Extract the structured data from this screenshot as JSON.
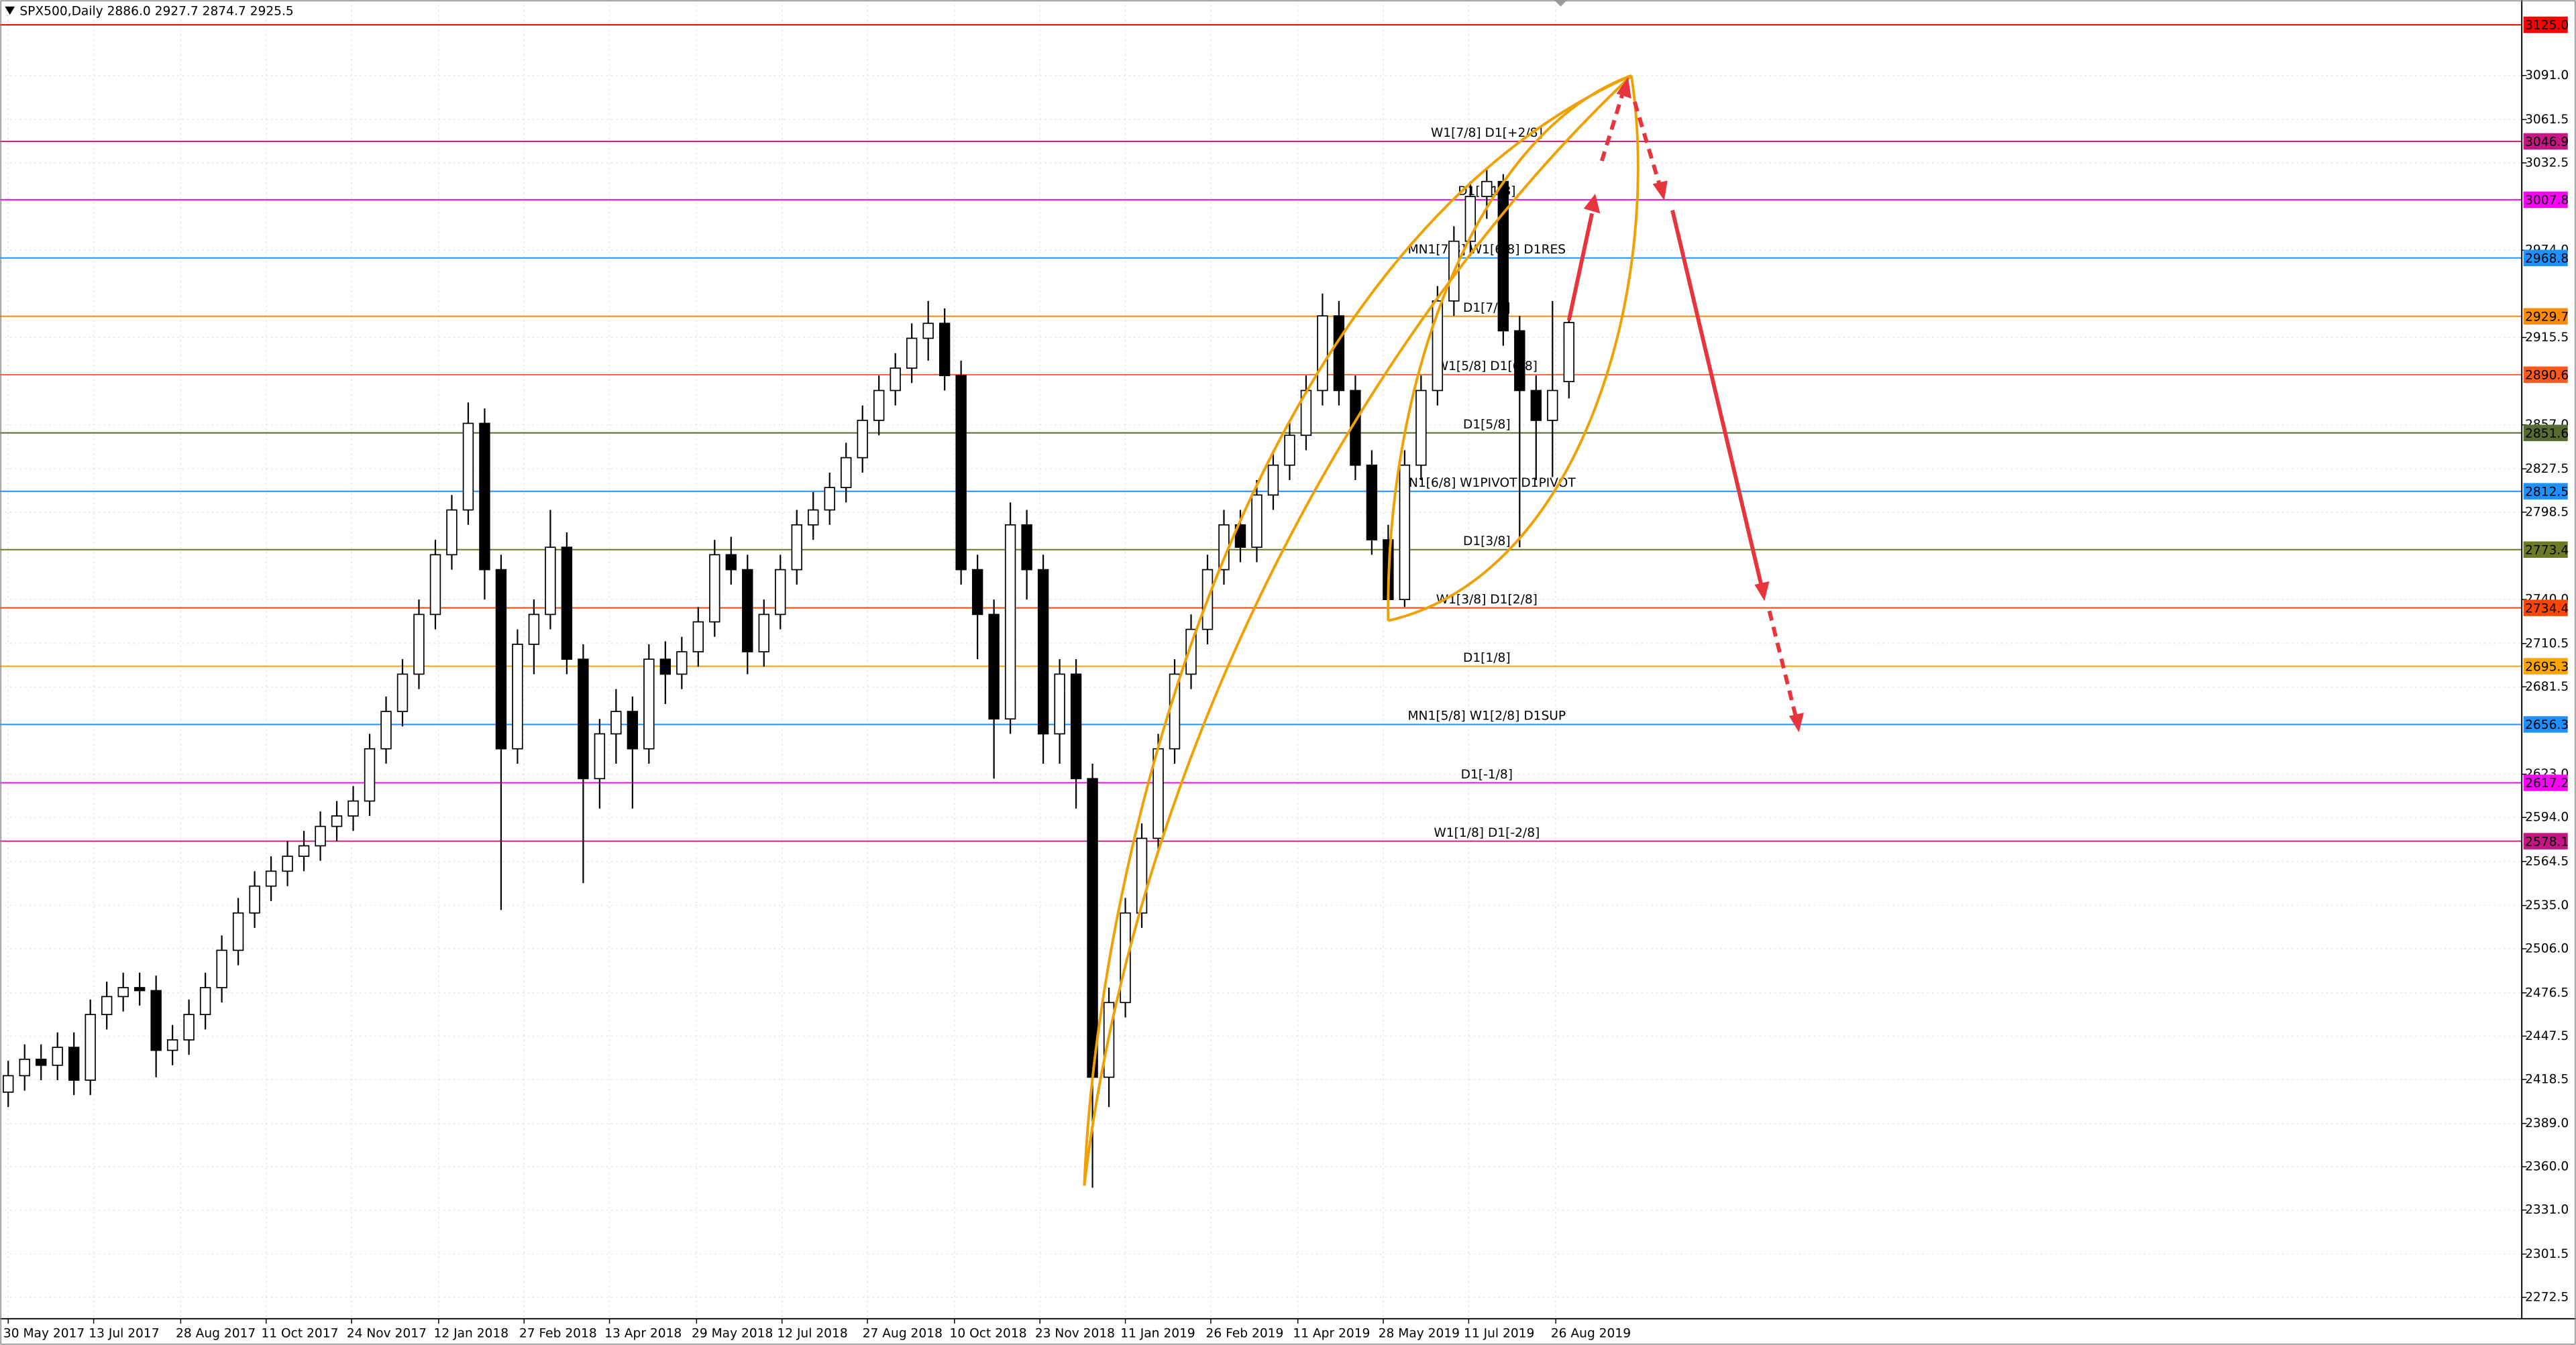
{
  "chart_data": {
    "type": "candlestick",
    "title": "SPX500,Daily  2886.0 2927.7 2874.7 2925.5",
    "up_color": "#ffffff",
    "down_color": "#000000",
    "wick_color": "#000000",
    "grid": true,
    "xlim": [
      -0.5,
      153
    ],
    "ylim": [
      2258.2,
      3141.6
    ],
    "xticks": [
      {
        "value": 0,
        "label": "30 May 2017"
      },
      {
        "value": 5.2,
        "label": "13 Jul 2017"
      },
      {
        "value": 10.5,
        "label": "28 Aug 2017"
      },
      {
        "value": 15.7,
        "label": "11 Oct 2017"
      },
      {
        "value": 20.9,
        "label": "24 Nov 2017"
      },
      {
        "value": 26.2,
        "label": "12 Jan 2018"
      },
      {
        "value": 31.4,
        "label": "27 Feb 2018"
      },
      {
        "value": 36.6,
        "label": "13 Apr 2018"
      },
      {
        "value": 41.9,
        "label": "29 May 2018"
      },
      {
        "value": 47.1,
        "label": "12 Jul 2018"
      },
      {
        "value": 52.3,
        "label": "27 Aug 2018"
      },
      {
        "value": 57.6,
        "label": "10 Oct 2018"
      },
      {
        "value": 62.8,
        "label": "23 Nov 2018"
      },
      {
        "value": 68,
        "label": "11 Jan 2019"
      },
      {
        "value": 73.2,
        "label": "26 Feb 2019"
      },
      {
        "value": 78.5,
        "label": "11 Apr 2019"
      },
      {
        "value": 83.7,
        "label": "28 May 2019"
      },
      {
        "value": 88.9,
        "label": "11 Jul 2019"
      },
      {
        "value": 94.2,
        "label": "26 Aug 2019"
      }
    ],
    "yticks": [
      {
        "value": 3091.0,
        "label": "3091.0"
      },
      {
        "value": 3061.5,
        "label": "3061.5"
      },
      {
        "value": 3032.5,
        "label": "3032.5"
      },
      {
        "value": 2974.0,
        "label": "2974.0"
      },
      {
        "value": 2915.5,
        "label": "2915.5"
      },
      {
        "value": 2857.0,
        "label": "2857.0"
      },
      {
        "value": 2827.5,
        "label": "2827.5"
      },
      {
        "value": 2798.5,
        "label": "2798.5"
      },
      {
        "value": 2740.0,
        "label": "2740.0"
      },
      {
        "value": 2710.5,
        "label": "2710.5"
      },
      {
        "value": 2681.5,
        "label": "2681.5"
      },
      {
        "value": 2623.0,
        "label": "2623.0"
      },
      {
        "value": 2594.0,
        "label": "2594.0"
      },
      {
        "value": 2564.5,
        "label": "2564.5"
      },
      {
        "value": 2535.0,
        "label": "2535.0"
      },
      {
        "value": 2506.0,
        "label": "2506.0"
      },
      {
        "value": 2476.5,
        "label": "2476.5"
      },
      {
        "value": 2447.5,
        "label": "2447.5"
      },
      {
        "value": 2418.5,
        "label": "2418.5"
      },
      {
        "value": 2389.0,
        "label": "2389.0"
      },
      {
        "value": 2360.0,
        "label": "2360.0"
      },
      {
        "value": 2331.0,
        "label": "2331.0"
      },
      {
        "value": 2301.5,
        "label": "2301.5"
      },
      {
        "value": 2272.5,
        "label": "2272.5"
      }
    ],
    "levels": [
      {
        "value": 3125.0,
        "label": "3125.0",
        "color": "#ff0000"
      },
      {
        "value": 3046.9,
        "label": "3046.9",
        "text": "W1[7/8] D1[+2/8]",
        "color": "#c71585"
      },
      {
        "value": 3007.8,
        "label": "3007.8",
        "text": "D1[+1/8]",
        "color": "#ff00ff"
      },
      {
        "value": 2968.8,
        "label": "2968.8",
        "text": "MN1[7/8] W1[6/8] D1RES",
        "color": "#1e90ff"
      },
      {
        "value": 2929.7,
        "label": "2929.7",
        "text": "D1[7/8]",
        "color": "#ff8c00"
      },
      {
        "value": 2890.6,
        "label": "2890.6",
        "text": "W1[5/8] D1[6/8]",
        "color": "#ff5a1e"
      },
      {
        "value": 2851.6,
        "label": "2851.6",
        "text": "D1[5/8]",
        "color": "#556b2f"
      },
      {
        "value": 2812.5,
        "label": "2812.5",
        "text": "MN1[6/8] W1PIVOT D1PIVOT",
        "color": "#1e90ff"
      },
      {
        "value": 2773.4,
        "label": "2773.4",
        "text": "D1[3/8]",
        "color": "#6b7a23"
      },
      {
        "value": 2734.4,
        "label": "2734.4",
        "text": "W1[3/8] D1[2/8]",
        "color": "#ff4500"
      },
      {
        "value": 2695.3,
        "label": "2695.3",
        "text": "D1[1/8]",
        "color": "#ffa500"
      },
      {
        "value": 2656.3,
        "label": "2656.3",
        "text": "MN1[5/8] W1[2/8] D1SUP",
        "color": "#1e90ff"
      },
      {
        "value": 2617.2,
        "label": "2617.2",
        "text": "D1[-1/8]",
        "color": "#ff00ff"
      },
      {
        "value": 2578.1,
        "label": "2578.1",
        "text": "W1[1/8] D1[-2/8]",
        "color": "#c71585"
      }
    ],
    "x": [
      0,
      1,
      2,
      3,
      4,
      5,
      6,
      7,
      8,
      9,
      10,
      11,
      12,
      13,
      14,
      15,
      16,
      17,
      18,
      19,
      20,
      21,
      22,
      23,
      24,
      25,
      26,
      27,
      28,
      29,
      30,
      31,
      32,
      33,
      34,
      35,
      36,
      37,
      38,
      39,
      40,
      41,
      42,
      43,
      44,
      45,
      46,
      47,
      48,
      49,
      50,
      51,
      52,
      53,
      54,
      55,
      56,
      57,
      58,
      59,
      60,
      61,
      62,
      63,
      64,
      65,
      66,
      67,
      68,
      69,
      70,
      71,
      72,
      73,
      74,
      75,
      76,
      77,
      78,
      79,
      80,
      81,
      82,
      83,
      84,
      85,
      86,
      87,
      88,
      89,
      90,
      91,
      92,
      93,
      94,
      95
    ],
    "ohlc": [
      [
        2410,
        2431,
        2400,
        2421
      ],
      [
        2421,
        2442,
        2411,
        2432
      ],
      [
        2432,
        2442,
        2418,
        2428
      ],
      [
        2428,
        2450,
        2418,
        2440
      ],
      [
        2440,
        2450,
        2408,
        2418
      ],
      [
        2418,
        2472,
        2408,
        2462
      ],
      [
        2462,
        2484,
        2452,
        2474
      ],
      [
        2474,
        2490,
        2464,
        2480
      ],
      [
        2480,
        2490,
        2468,
        2478
      ],
      [
        2478,
        2488,
        2420,
        2438
      ],
      [
        2438,
        2455,
        2428,
        2445
      ],
      [
        2445,
        2472,
        2435,
        2462
      ],
      [
        2462,
        2490,
        2452,
        2480
      ],
      [
        2480,
        2515,
        2470,
        2505
      ],
      [
        2505,
        2540,
        2495,
        2530
      ],
      [
        2530,
        2558,
        2520,
        2548
      ],
      [
        2548,
        2568,
        2538,
        2558
      ],
      [
        2558,
        2578,
        2548,
        2568
      ],
      [
        2568,
        2585,
        2558,
        2575
      ],
      [
        2575,
        2598,
        2565,
        2588
      ],
      [
        2588,
        2605,
        2578,
        2595
      ],
      [
        2595,
        2615,
        2585,
        2605
      ],
      [
        2605,
        2650,
        2595,
        2640
      ],
      [
        2640,
        2675,
        2630,
        2665
      ],
      [
        2665,
        2700,
        2655,
        2690
      ],
      [
        2690,
        2740,
        2680,
        2730
      ],
      [
        2730,
        2780,
        2720,
        2770
      ],
      [
        2770,
        2810,
        2760,
        2800
      ],
      [
        2800,
        2872,
        2790,
        2858
      ],
      [
        2858,
        2868,
        2740,
        2760
      ],
      [
        2760,
        2770,
        2532,
        2640
      ],
      [
        2640,
        2720,
        2630,
        2710
      ],
      [
        2710,
        2740,
        2690,
        2730
      ],
      [
        2730,
        2800,
        2720,
        2775
      ],
      [
        2775,
        2785,
        2690,
        2700
      ],
      [
        2700,
        2710,
        2550,
        2620
      ],
      [
        2620,
        2660,
        2600,
        2650
      ],
      [
        2650,
        2680,
        2630,
        2665
      ],
      [
        2665,
        2675,
        2600,
        2640
      ],
      [
        2640,
        2710,
        2630,
        2700
      ],
      [
        2700,
        2712,
        2670,
        2690
      ],
      [
        2690,
        2715,
        2680,
        2705
      ],
      [
        2705,
        2735,
        2695,
        2725
      ],
      [
        2725,
        2780,
        2715,
        2770
      ],
      [
        2770,
        2782,
        2750,
        2760
      ],
      [
        2760,
        2770,
        2690,
        2705
      ],
      [
        2705,
        2740,
        2695,
        2730
      ],
      [
        2730,
        2770,
        2720,
        2760
      ],
      [
        2760,
        2800,
        2750,
        2790
      ],
      [
        2790,
        2812,
        2780,
        2800
      ],
      [
        2800,
        2825,
        2790,
        2815
      ],
      [
        2815,
        2845,
        2805,
        2835
      ],
      [
        2835,
        2870,
        2825,
        2860
      ],
      [
        2860,
        2890,
        2850,
        2880
      ],
      [
        2880,
        2905,
        2870,
        2895
      ],
      [
        2895,
        2925,
        2885,
        2915
      ],
      [
        2915,
        2940,
        2900,
        2925
      ],
      [
        2925,
        2935,
        2880,
        2890
      ],
      [
        2890,
        2900,
        2750,
        2760
      ],
      [
        2760,
        2770,
        2700,
        2730
      ],
      [
        2730,
        2740,
        2620,
        2660
      ],
      [
        2660,
        2805,
        2650,
        2790
      ],
      [
        2790,
        2800,
        2740,
        2760
      ],
      [
        2760,
        2770,
        2630,
        2650
      ],
      [
        2650,
        2700,
        2630,
        2690
      ],
      [
        2690,
        2700,
        2600,
        2620
      ],
      [
        2620,
        2630,
        2346,
        2420
      ],
      [
        2420,
        2480,
        2400,
        2470
      ],
      [
        2470,
        2540,
        2460,
        2530
      ],
      [
        2530,
        2590,
        2520,
        2580
      ],
      [
        2580,
        2650,
        2570,
        2640
      ],
      [
        2640,
        2700,
        2630,
        2690
      ],
      [
        2690,
        2730,
        2680,
        2720
      ],
      [
        2720,
        2770,
        2710,
        2760
      ],
      [
        2760,
        2800,
        2750,
        2790
      ],
      [
        2790,
        2800,
        2765,
        2775
      ],
      [
        2775,
        2820,
        2765,
        2810
      ],
      [
        2810,
        2840,
        2800,
        2830
      ],
      [
        2830,
        2860,
        2820,
        2850
      ],
      [
        2850,
        2890,
        2840,
        2880
      ],
      [
        2880,
        2945,
        2870,
        2930
      ],
      [
        2930,
        2940,
        2870,
        2880
      ],
      [
        2880,
        2890,
        2820,
        2830
      ],
      [
        2830,
        2840,
        2770,
        2780
      ],
      [
        2780,
        2790,
        2730,
        2740
      ],
      [
        2740,
        2840,
        2735,
        2830
      ],
      [
        2830,
        2890,
        2820,
        2880
      ],
      [
        2880,
        2950,
        2870,
        2940
      ],
      [
        2940,
        2990,
        2930,
        2980
      ],
      [
        2980,
        3020,
        2970,
        3010
      ],
      [
        3010,
        3028,
        2995,
        3020
      ],
      [
        3020,
        3025,
        2910,
        2920
      ],
      [
        2920,
        2930,
        2775,
        2880
      ],
      [
        2880,
        2890,
        2820,
        2860
      ],
      [
        2860,
        2940,
        2822,
        2880
      ],
      [
        2886.0,
        2927.7,
        2874.7,
        2925.5
      ]
    ]
  }
}
